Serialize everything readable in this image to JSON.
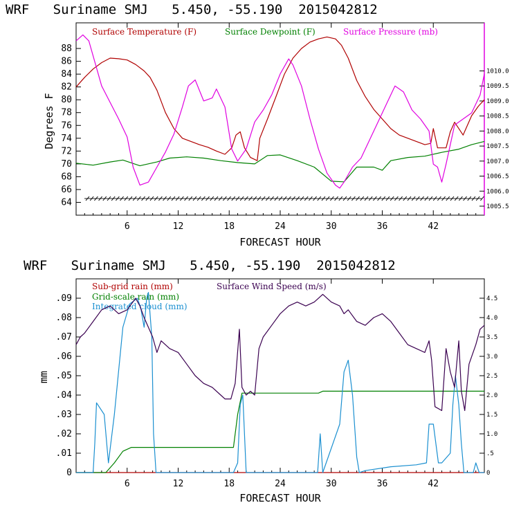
{
  "chart_data": [
    {
      "type": "line",
      "title": "WRF   Suriname SMJ   5.450, -55.190  2015042812",
      "xlabel": "FORECAST HOUR",
      "ylabel": "Degrees F",
      "xlim": [
        0,
        48
      ],
      "ylim": [
        62,
        92
      ],
      "xticks": [
        "6",
        "12",
        "18",
        "24",
        "30",
        "36",
        "42"
      ],
      "xtick_values": [
        6,
        12,
        18,
        24,
        30,
        36,
        42
      ],
      "yticks": [
        "64",
        "66",
        "68",
        "70",
        "72",
        "74",
        "76",
        "78",
        "80",
        "82",
        "84",
        "86",
        "88"
      ],
      "ytick_values": [
        64,
        66,
        68,
        70,
        72,
        74,
        76,
        78,
        80,
        82,
        84,
        86,
        88
      ],
      "right_axis": {
        "label": "Surface Pressure (mb)",
        "ylim": [
          1005.2,
          1011.6
        ],
        "ticks": [
          "1005.5",
          "1006.0",
          "1006.5",
          "1007.0",
          "1007.5",
          "1008.0",
          "1008.5",
          "1009.0",
          "1009.5",
          "1010.0"
        ],
        "tick_values": [
          1005.5,
          1006.0,
          1006.5,
          1007.0,
          1007.5,
          1008.0,
          1008.5,
          1009.0,
          1009.5,
          1010.0
        ]
      },
      "wind_barb_row_value": 64.6,
      "series": [
        {
          "name": "Surface Temperature (F)",
          "color": "#b00000",
          "axis": "left",
          "x": [
            0,
            1,
            2,
            3,
            4,
            5,
            6,
            7,
            8,
            8.7,
            9.5,
            10.5,
            11.5,
            12.5,
            13.5,
            14.5,
            15.5,
            16.5,
            17.5,
            18.3,
            18.8,
            19.3,
            19.8,
            20.5,
            21.3,
            21.6,
            22.5,
            23.5,
            24.5,
            25.5,
            26.5,
            27.5,
            28.5,
            29.5,
            30.5,
            31.2,
            32,
            33,
            34,
            35,
            36,
            37,
            38,
            39,
            40,
            41,
            41.7,
            42,
            42.5,
            43.5,
            44,
            44.5,
            45.5,
            46.5,
            47.3,
            48
          ],
          "values": [
            82,
            83.5,
            84.8,
            85.8,
            86.5,
            86.4,
            86.2,
            85.5,
            84.5,
            83.5,
            81.5,
            78,
            75.5,
            74,
            73.5,
            73,
            72.6,
            72,
            71.5,
            72.5,
            74.5,
            75,
            72.5,
            71,
            70.5,
            74,
            77,
            80.5,
            84,
            86.5,
            88,
            89,
            89.5,
            89.8,
            89.5,
            88.5,
            86.5,
            83,
            80.5,
            78.5,
            77,
            75.5,
            74.5,
            74,
            73.5,
            73,
            73.2,
            75.5,
            72.5,
            72.5,
            75,
            76.5,
            74.5,
            77.5,
            79,
            80
          ]
        },
        {
          "name": "Surface Dewpoint (F)",
          "color": "#008000",
          "axis": "left",
          "x": [
            0,
            2,
            4,
            5.5,
            7.5,
            9.5,
            11,
            13,
            15,
            17,
            19,
            21,
            22.5,
            24,
            26,
            28,
            30,
            31.5,
            33,
            35,
            36,
            37,
            39,
            41,
            43,
            45,
            46.5,
            48
          ],
          "values": [
            70.1,
            69.8,
            70.3,
            70.6,
            69.7,
            70.3,
            70.9,
            71.1,
            70.9,
            70.5,
            70.2,
            70,
            71.3,
            71.4,
            70.5,
            69.5,
            67.3,
            67.2,
            69.5,
            69.5,
            69,
            70.5,
            71,
            71.2,
            71.8,
            72.3,
            73,
            73.5
          ]
        },
        {
          "name": "Surface Pressure (mb)",
          "color": "#e000e0",
          "axis": "right",
          "x": [
            0,
            0.8,
            1.5,
            3,
            5,
            6,
            6.7,
            7.5,
            8.5,
            9.5,
            10.5,
            11.5,
            12.5,
            13.2,
            14,
            15,
            16,
            16.5,
            17.5,
            18.3,
            19,
            20,
            21,
            22,
            23,
            24,
            25,
            25.5,
            26.5,
            27.5,
            28.5,
            29.5,
            30.5,
            31,
            31.5,
            32.5,
            33.5,
            34.5,
            35.5,
            36.5,
            37.5,
            38.5,
            39.5,
            40.5,
            41.5,
            42,
            42.5,
            43,
            43.5,
            44.5,
            45.5,
            46.5,
            47.5,
            48
          ],
          "values": [
            1011.0,
            1011.2,
            1011.0,
            1009.5,
            1008.4,
            1007.8,
            1006.8,
            1006.2,
            1006.3,
            1006.8,
            1007.3,
            1007.9,
            1008.8,
            1009.5,
            1009.7,
            1009.0,
            1009.1,
            1009.4,
            1008.8,
            1007.4,
            1007.0,
            1007.4,
            1008.3,
            1008.7,
            1009.2,
            1009.9,
            1010.4,
            1010.2,
            1009.5,
            1008.4,
            1007.4,
            1006.6,
            1006.2,
            1006.1,
            1006.3,
            1006.8,
            1007.1,
            1007.7,
            1008.3,
            1008.9,
            1009.5,
            1009.3,
            1008.7,
            1008.4,
            1008.0,
            1006.9,
            1006.8,
            1006.3,
            1006.9,
            1008.2,
            1008.4,
            1008.6,
            1009.2,
            1009.9
          ]
        }
      ]
    },
    {
      "type": "line",
      "title": "WRF   Suriname SMJ   5.450, -55.190  2015042812",
      "xlabel": "FORECAST HOUR",
      "ylabel": "mm",
      "xlim": [
        0,
        48
      ],
      "ylim": [
        0,
        0.1
      ],
      "xticks": [
        "6",
        "12",
        "18",
        "24",
        "30",
        "36",
        "42"
      ],
      "xtick_values": [
        6,
        12,
        18,
        24,
        30,
        36,
        42
      ],
      "yticks": [
        "0",
        ".01",
        ".02",
        ".03",
        ".04",
        ".05",
        ".06",
        ".07",
        ".08",
        ".09"
      ],
      "ytick_values": [
        0,
        0.01,
        0.02,
        0.03,
        0.04,
        0.05,
        0.06,
        0.07,
        0.08,
        0.09
      ],
      "right_axis": {
        "label": "Surface Wind Speed (m/s)",
        "ylim": [
          0,
          5
        ],
        "ticks": [
          "0",
          ".5",
          "1.0",
          "1.5",
          "2.0",
          "2.5",
          "3.0",
          "3.5",
          "4.0",
          "4.5"
        ],
        "tick_values": [
          0,
          0.5,
          1.0,
          1.5,
          2.0,
          2.5,
          3.0,
          3.5,
          4.0,
          4.5
        ]
      },
      "series": [
        {
          "name": "Sub-grid rain (mm)",
          "color": "#b00000",
          "axis": "left",
          "x": [
            0,
            48
          ],
          "values": [
            0,
            0
          ]
        },
        {
          "name": "Grid-scale rain (mm)",
          "color": "#008000",
          "axis": "left",
          "x": [
            0,
            3.5,
            4.5,
            5.5,
            6.5,
            18.5,
            19,
            19.5,
            28.5,
            29,
            48
          ],
          "values": [
            0,
            0,
            0.005,
            0.011,
            0.013,
            0.013,
            0.03,
            0.041,
            0.041,
            0.042,
            0.042
          ]
        },
        {
          "name": "Integrated cloud (mm)",
          "color": "#1a8fd0",
          "axis": "left",
          "x": [
            0,
            2,
            2.2,
            2.4,
            3.3,
            3.8,
            4.5,
            5.5,
            6.3,
            7.2,
            7.6,
            8,
            8.3,
            8.5,
            8.9,
            9.1,
            9.4,
            18.5,
            19,
            19.3,
            19.6,
            20,
            28.4,
            28.7,
            29,
            31,
            31.5,
            32,
            32.5,
            33,
            33.3,
            34,
            37,
            40,
            41.2,
            41.5,
            42,
            42.6,
            43,
            44,
            44.3,
            44.6,
            45,
            45.3,
            45.6,
            46.7,
            47,
            47.4,
            48
          ],
          "values": [
            0,
            0,
            0.015,
            0.036,
            0.03,
            0.005,
            0.03,
            0.075,
            0.087,
            0.09,
            0.085,
            0.075,
            0.09,
            0.093,
            0.07,
            0.02,
            0,
            0,
            0.005,
            0.035,
            0.04,
            0,
            0,
            0.02,
            0,
            0.025,
            0.052,
            0.058,
            0.04,
            0.008,
            0,
            0.001,
            0.003,
            0.004,
            0.005,
            0.025,
            0.025,
            0.005,
            0.005,
            0.01,
            0.035,
            0.05,
            0.035,
            0.015,
            0,
            0,
            0.005,
            0,
            0
          ]
        },
        {
          "name": "Surface Wind Speed (m/s)",
          "color": "#3a0050",
          "axis": "right",
          "x": [
            0,
            0.5,
            1,
            2,
            3,
            4,
            5,
            6,
            7,
            7.5,
            8,
            9,
            9.5,
            10,
            11,
            12,
            13,
            14,
            15,
            16,
            17,
            17.5,
            18.2,
            18.7,
            19.2,
            19.5,
            20,
            20.5,
            21,
            21.5,
            22,
            23,
            24,
            25,
            26,
            27,
            28,
            29,
            30,
            31,
            31.5,
            32,
            33,
            34,
            35,
            36,
            37,
            38,
            39,
            40,
            41,
            41.5,
            41.8,
            42.2,
            43,
            43.5,
            44,
            44.5,
            45,
            45.3,
            45.7,
            46.2,
            47,
            47.5,
            48
          ],
          "values": [
            3.3,
            3.5,
            3.6,
            3.9,
            4.2,
            4.3,
            4.1,
            4.2,
            4.5,
            4.3,
            4.0,
            3.5,
            3.1,
            3.4,
            3.2,
            3.1,
            2.8,
            2.5,
            2.3,
            2.2,
            2.0,
            1.9,
            1.9,
            2.3,
            3.7,
            2.2,
            2.0,
            2.1,
            2.0,
            3.2,
            3.5,
            3.8,
            4.1,
            4.3,
            4.4,
            4.3,
            4.4,
            4.6,
            4.4,
            4.3,
            4.1,
            4.2,
            3.9,
            3.8,
            4.0,
            4.1,
            3.9,
            3.6,
            3.3,
            3.2,
            3.1,
            3.4,
            2.9,
            1.7,
            1.6,
            3.2,
            2.6,
            2.2,
            3.4,
            2.1,
            1.6,
            2.8,
            3.3,
            3.7,
            3.8
          ]
        }
      ]
    }
  ]
}
